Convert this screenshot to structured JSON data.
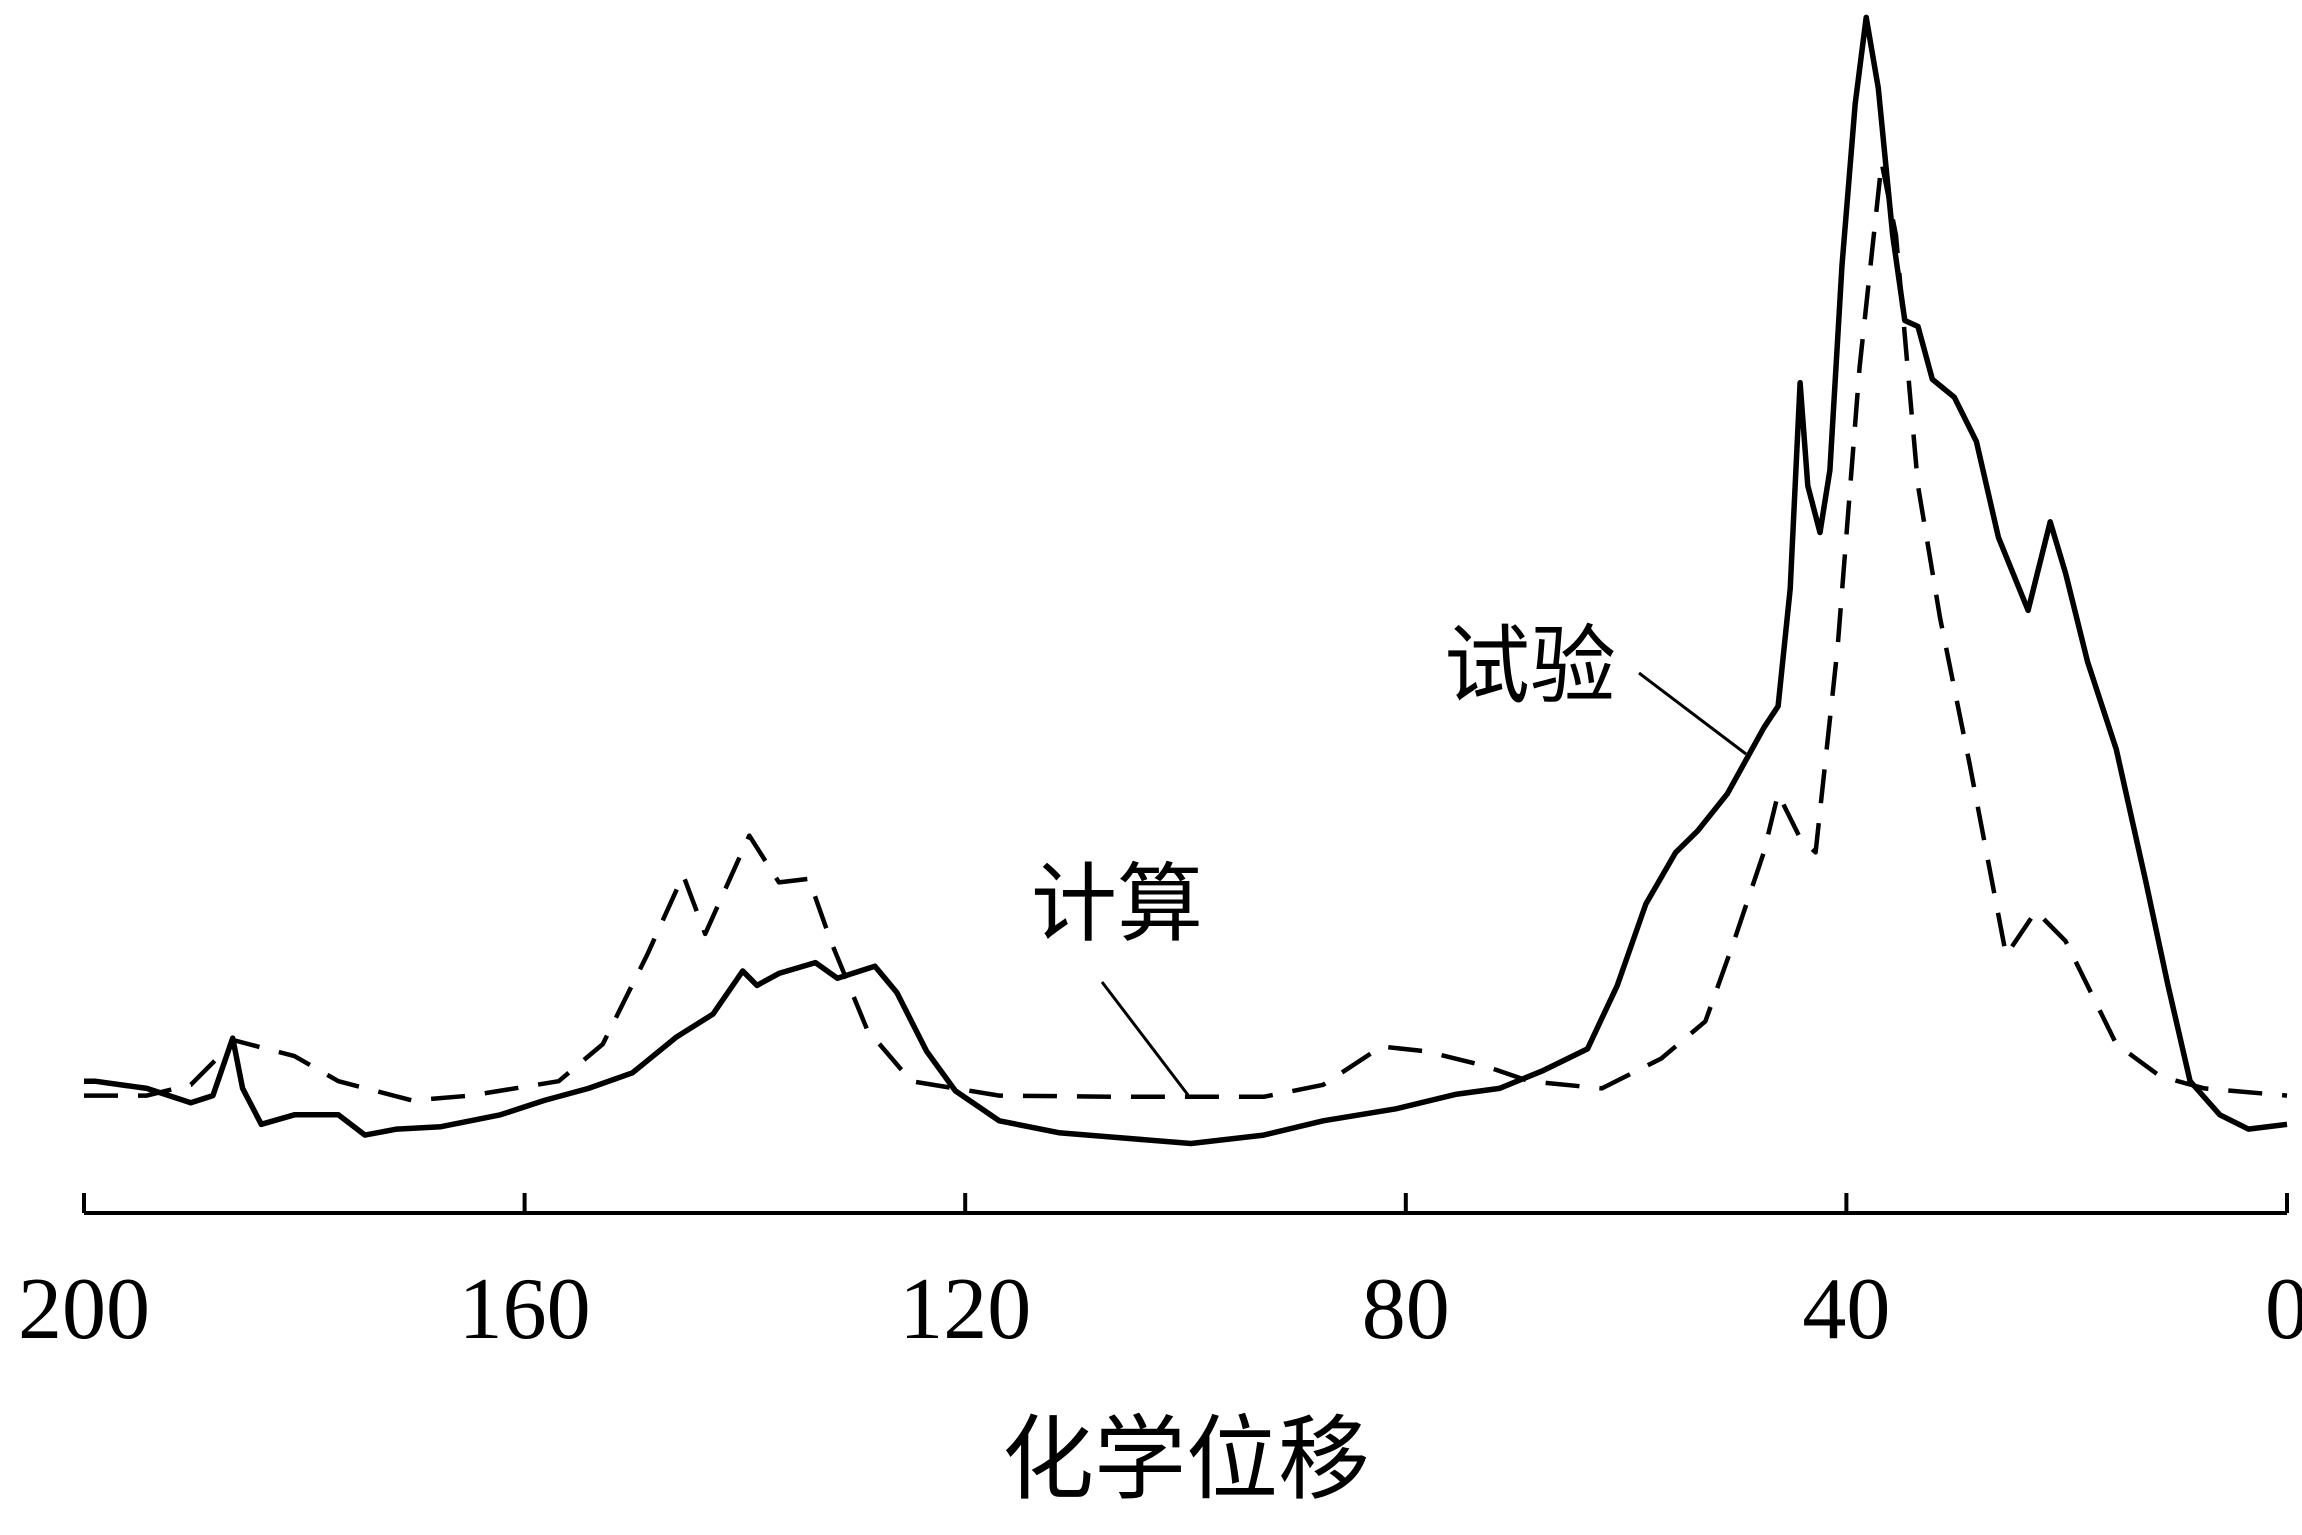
{
  "chart_data": {
    "type": "line",
    "xlabel": "化学位移",
    "xlim": [
      200,
      0
    ],
    "xticks": [
      200,
      160,
      120,
      80,
      40,
      0
    ],
    "ylim": [
      0,
      100
    ],
    "series": [
      {
        "name": "试验",
        "color": "#000000",
        "style": "solid",
        "x": [
          200,
          199,
          194.3,
          190.3,
          188.3,
          186.5,
          185.6,
          183.9,
          180.9,
          176.9,
          174.5,
          171.6,
          167.6,
          162.2,
          158.2,
          154.2,
          150.2,
          146.2,
          142.9,
          140.2,
          138.9,
          136.9,
          133.6,
          131.6,
          128.2,
          126.2,
          123.5,
          120.9,
          116.9,
          111.5,
          106.2,
          99.5,
          92.9,
          87.5,
          80.9,
          75.5,
          71.5,
          67.5,
          63.5,
          60.8,
          58.2,
          55.5,
          53.5,
          50.8,
          47.5,
          46.2,
          45.1,
          44.2,
          43.5,
          42.4,
          41.5,
          40.4,
          39.2,
          38.2,
          37.1,
          35.8,
          34.7,
          33.5,
          32.2,
          30.2,
          28.2,
          26.2,
          23.5,
          21.5,
          20.1,
          18.1,
          15.5,
          12.8,
          10.8,
          8.8,
          6.1,
          3.5,
          0
        ],
        "values": [
          11.0,
          11.0,
          10.4,
          9.2,
          9.8,
          14.6,
          10.4,
          7.4,
          8.2,
          8.2,
          6.5,
          7.0,
          7.2,
          8.2,
          9.4,
          10.4,
          11.7,
          14.7,
          16.6,
          20.2,
          19.0,
          20.0,
          20.9,
          19.6,
          20.6,
          18.4,
          13.5,
          10.2,
          7.7,
          6.7,
          6.3,
          5.8,
          6.5,
          7.7,
          8.7,
          9.9,
          10.4,
          11.9,
          13.7,
          19.0,
          25.8,
          30.1,
          31.9,
          35.0,
          40.5,
          42.3,
          52.1,
          69.3,
          60.7,
          56.8,
          62.0,
          79.1,
          92.6,
          99.8,
          93.9,
          81.6,
          74.5,
          74.0,
          69.6,
          68.1,
          64.4,
          56.4,
          50.3,
          57.7,
          53.4,
          46.0,
          38.7,
          27.6,
          19.0,
          11.0,
          8.2,
          7.0,
          7.4
        ]
      },
      {
        "name": "计算",
        "color": "#000000",
        "style": "dashed",
        "x": [
          200,
          194.3,
          190.3,
          186.3,
          180.9,
          176.9,
          170.2,
          164.9,
          156.9,
          152.9,
          148.9,
          145.6,
          143.6,
          139.6,
          136.9,
          134.2,
          132.2,
          128.9,
          124.9,
          116.9,
          106.2,
          99.5,
          92.9,
          87.5,
          82.2,
          78.2,
          72.9,
          68.8,
          62.2,
          56.8,
          52.8,
          50.2,
          47.5,
          46.2,
          44.2,
          42.8,
          40.8,
          38.8,
          36.8,
          35.5,
          33.5,
          31.5,
          28.8,
          25.5,
          22.8,
          20.1,
          15.5,
          11.5,
          7.5,
          0
        ],
        "values": [
          9.8,
          9.8,
          10.7,
          14.4,
          13.1,
          11.0,
          9.4,
          9.8,
          11.0,
          14.1,
          21.5,
          28.2,
          23.3,
          31.5,
          27.6,
          27.9,
          22.7,
          15.3,
          11.0,
          9.8,
          9.7,
          9.7,
          9.7,
          10.7,
          13.9,
          13.5,
          12.3,
          11.0,
          10.4,
          12.9,
          16.0,
          22.7,
          30.1,
          35.0,
          31.3,
          30.1,
          47.2,
          70.6,
          87.7,
          81.6,
          60.7,
          49.7,
          37.4,
          21.5,
          25.2,
          22.7,
          14.1,
          11.4,
          10.4,
          9.8
        ]
      }
    ]
  }
}
